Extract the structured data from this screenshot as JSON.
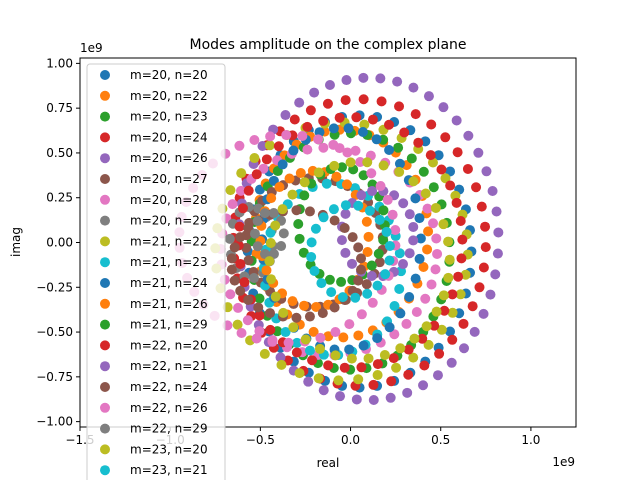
{
  "chart_data": {
    "type": "scatter",
    "title": "Modes amplitude on the complex plane",
    "xlabel": "real",
    "ylabel": "imag",
    "x_offset_label": "1e9",
    "y_offset_label": "1e9",
    "xlim": [
      -1.5,
      1.25
    ],
    "ylim": [
      -1.03,
      1.03
    ],
    "x_ticks": [
      -1.5,
      -1.0,
      -0.5,
      0.0,
      0.5,
      1.0
    ],
    "x_tick_labels": [
      "−1.5",
      "−1.0",
      "−0.5",
      "0.0",
      "0.5",
      "1.0"
    ],
    "y_ticks": [
      -1.0,
      -0.75,
      -0.5,
      -0.25,
      0.0,
      0.25,
      0.5,
      0.75,
      1.0
    ],
    "y_tick_labels": [
      "−1.00",
      "−0.75",
      "−0.50",
      "−0.25",
      "0.00",
      "0.25",
      "0.50",
      "0.75",
      "1.00"
    ],
    "grid": false,
    "legend_position": "upper-left",
    "series": [
      {
        "name": "m=20, n=20",
        "color": "#1f77b4",
        "cx": 0.05,
        "cy": -0.05,
        "rx": 0.62,
        "ry": 0.76,
        "n": 40
      },
      {
        "name": "m=20, n=22",
        "color": "#ff7f0e",
        "cx": -0.05,
        "cy": 0.05,
        "rx": 0.48,
        "ry": 0.58,
        "n": 36
      },
      {
        "name": "m=20, n=23",
        "color": "#2ca02c",
        "cx": 0.0,
        "cy": -0.05,
        "rx": 0.55,
        "ry": 0.66,
        "n": 38
      },
      {
        "name": "m=20, n=24",
        "color": "#d62728",
        "cx": 0.05,
        "cy": 0.0,
        "rx": 0.7,
        "ry": 0.8,
        "n": 44
      },
      {
        "name": "m=20, n=26",
        "color": "#9467bd",
        "cx": 0.1,
        "cy": 0.02,
        "rx": 0.72,
        "ry": 0.9,
        "n": 48
      },
      {
        "name": "m=20, n=27",
        "color": "#8c564b",
        "cx": -0.2,
        "cy": 0.0,
        "rx": 0.38,
        "ry": 0.36,
        "n": 32
      },
      {
        "name": "m=20, n=28",
        "color": "#e377c2",
        "cx": -0.12,
        "cy": -0.05,
        "rx": 0.6,
        "ry": 0.58,
        "n": 42
      },
      {
        "name": "m=20, n=29",
        "color": "#7f7f7f",
        "cx": -0.55,
        "cy": 0.0,
        "rx": 0.12,
        "ry": 0.2,
        "n": 14
      },
      {
        "name": "m=21, n=22",
        "color": "#bcbd22",
        "cx": -0.05,
        "cy": -0.05,
        "rx": 0.7,
        "ry": 0.72,
        "n": 40
      },
      {
        "name": "m=21, n=23",
        "color": "#17becf",
        "cx": -0.1,
        "cy": -0.15,
        "rx": 0.38,
        "ry": 0.48,
        "n": 30
      },
      {
        "name": "m=21, n=24",
        "color": "#1f77b4",
        "cx": -0.05,
        "cy": 0.02,
        "rx": 0.44,
        "ry": 0.62,
        "n": 34
      },
      {
        "name": "m=21, n=26",
        "color": "#ff7f0e",
        "cx": -0.2,
        "cy": 0.02,
        "rx": 0.3,
        "ry": 0.38,
        "n": 28
      },
      {
        "name": "m=21, n=29",
        "color": "#2ca02c",
        "cx": -0.05,
        "cy": 0.1,
        "rx": 0.24,
        "ry": 0.32,
        "n": 24
      },
      {
        "name": "m=22, n=20",
        "color": "#d62728",
        "cx": 0.0,
        "cy": 0.0,
        "rx": 0.62,
        "ry": 0.7,
        "n": 42
      },
      {
        "name": "m=22, n=21",
        "color": "#9467bd",
        "cx": 0.15,
        "cy": 0.05,
        "rx": 0.2,
        "ry": 0.24,
        "n": 20
      },
      {
        "name": "m=22, n=24",
        "color": "#8c564b",
        "cx": -0.3,
        "cy": -0.12,
        "rx": 0.36,
        "ry": 0.3,
        "n": 30
      },
      {
        "name": "m=22, n=26",
        "color": "#e377c2",
        "cx": -0.35,
        "cy": 0.02,
        "rx": 0.6,
        "ry": 0.58,
        "n": 42
      },
      {
        "name": "m=22, n=29",
        "color": "#7f7f7f",
        "cx": -0.45,
        "cy": 0.05,
        "rx": 0.08,
        "ry": 0.12,
        "n": 10
      },
      {
        "name": "m=23, n=20",
        "color": "#bcbd22",
        "cx": 0.05,
        "cy": -0.1,
        "rx": 0.5,
        "ry": 0.55,
        "n": 34
      },
      {
        "name": "m=23, n=21",
        "color": "#17becf",
        "cx": 0.0,
        "cy": -0.05,
        "rx": 0.22,
        "ry": 0.26,
        "n": 20
      }
    ]
  }
}
